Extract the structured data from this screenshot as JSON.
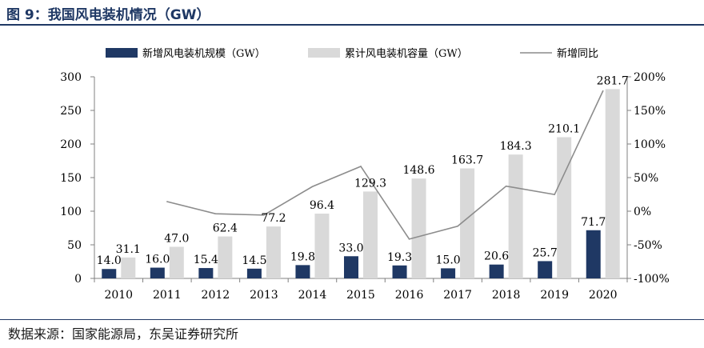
{
  "figure": {
    "title": "图 9：我国风电装机情况（GW）",
    "source": "数据来源：国家能源局，东吴证券研究所"
  },
  "colors": {
    "new_bar": "#1f3864",
    "cum_bar": "#d9d9d9",
    "line": "#8c8c8c",
    "header": "#1f3864"
  },
  "chart_data": {
    "type": "bar",
    "categories": [
      "2010",
      "2011",
      "2012",
      "2013",
      "2014",
      "2015",
      "2016",
      "2017",
      "2018",
      "2019",
      "2020"
    ],
    "series": [
      {
        "name": "新增风电装机规模（GW）",
        "type": "bar",
        "axis": "left",
        "values": [
          14.0,
          16.0,
          15.4,
          14.5,
          19.8,
          33.0,
          19.3,
          15.0,
          20.6,
          25.7,
          71.7
        ]
      },
      {
        "name": "累计风电装机容量（GW）",
        "type": "bar",
        "axis": "left",
        "values": [
          31.1,
          47.0,
          62.4,
          77.2,
          96.4,
          129.3,
          148.6,
          163.7,
          184.3,
          210.1,
          281.7
        ]
      },
      {
        "name": "新增同比",
        "type": "line",
        "axis": "right",
        "values": [
          null,
          14.3,
          -3.8,
          -5.8,
          36.6,
          66.7,
          -41.5,
          -22.3,
          37.3,
          24.8,
          179.0
        ]
      }
    ],
    "y_left": {
      "lim": [
        0,
        300
      ],
      "ticks": [
        "0",
        "50",
        "100",
        "150",
        "200",
        "250",
        "300"
      ]
    },
    "y_right": {
      "lim": [
        -100,
        200
      ],
      "ticks": [
        "-100%",
        "-50%",
        "0%",
        "50%",
        "100%",
        "150%",
        "200%"
      ]
    },
    "legend_position": "top",
    "grid": false
  }
}
